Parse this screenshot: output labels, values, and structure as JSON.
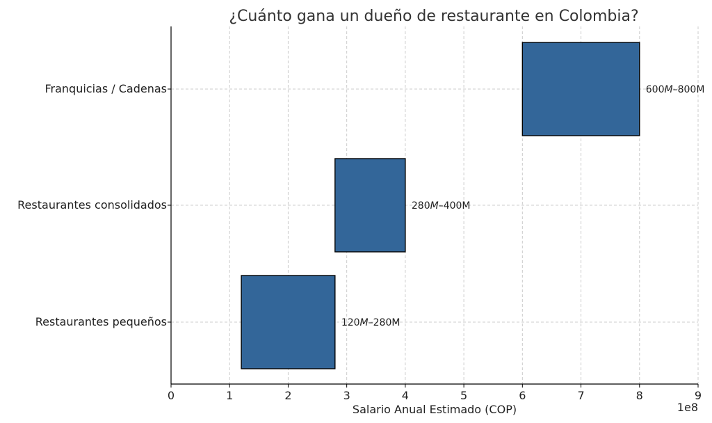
{
  "chart_data": {
    "type": "bar",
    "orientation": "horizontal",
    "title": "¿Cuánto gana un dueño de restaurante en Colombia?",
    "xlabel": "Salario Anual Estimado (COP)",
    "ylabel": "",
    "x_offset_label": "1e8",
    "xlim": [
      0,
      900000000
    ],
    "x_ticks": [
      0,
      100000000,
      200000000,
      300000000,
      400000000,
      500000000,
      600000000,
      700000000,
      800000000,
      900000000
    ],
    "x_tick_labels": [
      "0",
      "1",
      "2",
      "3",
      "4",
      "5",
      "6",
      "7",
      "8",
      "9"
    ],
    "grid": true,
    "bar_color": "#336699",
    "categories": [
      "Restaurantes pequeños",
      "Restaurantes consolidados",
      "Franquicias / Cadenas"
    ],
    "ranges": [
      {
        "category": "Restaurantes pequeños",
        "min": 120000000,
        "max": 280000000
      },
      {
        "category": "Restaurantes consolidados",
        "min": 280000000,
        "max": 400000000
      },
      {
        "category": "Franquicias / Cadenas",
        "min": 600000000,
        "max": 800000000
      }
    ],
    "data_labels": [
      {
        "pre": "120",
        "it1": "M",
        "mid": "–280M",
        "it2": "",
        "post": ""
      },
      {
        "pre": "280",
        "it1": "M",
        "mid": "–400M",
        "it2": "",
        "post": ""
      },
      {
        "pre": "600",
        "it1": "M",
        "mid": "–800M",
        "it2": "",
        "post": ""
      }
    ]
  }
}
